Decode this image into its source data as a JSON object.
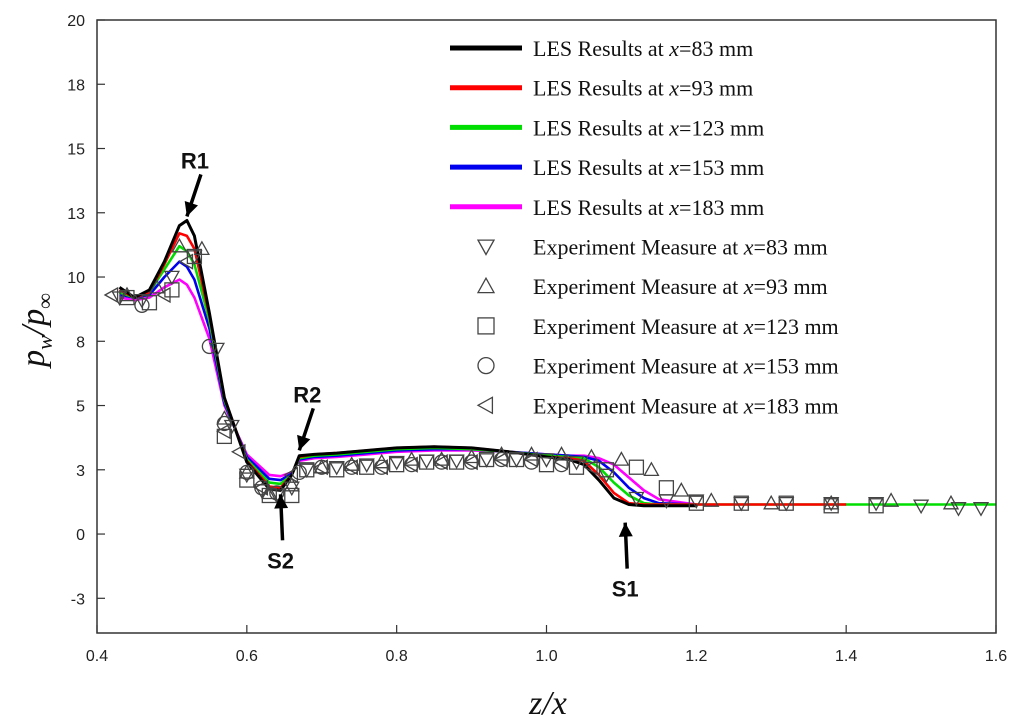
{
  "chart_data": {
    "type": "line",
    "title": "",
    "xlabel": "z/x",
    "ylabel": "pw/p∞",
    "ylabel_main": "p",
    "ylabel_sub": "w",
    "ylabel_sep": "/p",
    "ylabel_sub2": "∞",
    "xlim": [
      0.4,
      1.6
    ],
    "ylim": [
      -3.85,
      20
    ],
    "x_ticks": [
      0.4,
      0.6,
      0.8,
      1.0,
      1.2,
      1.4,
      1.6
    ],
    "x_tick_labels": [
      "0.4",
      "0.6",
      "0.8",
      "1.0",
      "1.2",
      "1.4",
      "1.6"
    ],
    "y_ticks": [
      -2.5,
      0,
      2.5,
      5,
      7.5,
      10,
      12.5,
      15,
      17.5,
      20
    ],
    "y_tick_labels": [
      "-3",
      "0",
      "3",
      "5",
      "8",
      "10",
      "13",
      "15",
      "18",
      "20"
    ],
    "legend_position": "top-right",
    "series": [
      {
        "name": "LES Results at x=83 mm",
        "prefix": "LES Results at ",
        "x_var": "x",
        "suffix": "=83 mm",
        "color": "#000000",
        "x_end": 1.2,
        "x": [
          0.43,
          0.45,
          0.47,
          0.49,
          0.51,
          0.52,
          0.53,
          0.55,
          0.57,
          0.6,
          0.63,
          0.645,
          0.66,
          0.67,
          0.69,
          0.72,
          0.76,
          0.8,
          0.85,
          0.9,
          0.95,
          1.0,
          1.03,
          1.05,
          1.07,
          1.09,
          1.11,
          1.13,
          1.15,
          1.2
        ],
        "y": [
          9.6,
          9.2,
          9.5,
          10.6,
          12.0,
          12.2,
          11.6,
          8.6,
          5.3,
          2.8,
          1.75,
          1.7,
          2.3,
          3.05,
          3.1,
          3.15,
          3.25,
          3.35,
          3.4,
          3.35,
          3.2,
          3.0,
          2.9,
          2.7,
          2.1,
          1.4,
          1.15,
          1.1,
          1.1,
          1.1
        ]
      },
      {
        "name": "LES Results at x=93 mm",
        "prefix": "LES Results at ",
        "x_var": "x",
        "suffix": "=93 mm",
        "color": "#ff0000",
        "x_end": 1.4,
        "x": [
          0.43,
          0.45,
          0.47,
          0.49,
          0.51,
          0.52,
          0.53,
          0.55,
          0.57,
          0.6,
          0.63,
          0.645,
          0.66,
          0.67,
          0.69,
          0.72,
          0.76,
          0.8,
          0.85,
          0.9,
          0.95,
          1.0,
          1.03,
          1.05,
          1.07,
          1.09,
          1.11,
          1.13,
          1.15,
          1.4
        ],
        "y": [
          9.5,
          9.2,
          9.4,
          10.5,
          11.7,
          11.6,
          11.1,
          8.5,
          5.3,
          2.85,
          1.85,
          1.8,
          2.3,
          3.0,
          3.1,
          3.15,
          3.25,
          3.35,
          3.4,
          3.35,
          3.2,
          3.0,
          2.95,
          2.85,
          2.3,
          1.6,
          1.2,
          1.15,
          1.15,
          1.15
        ]
      },
      {
        "name": "LES Results at x=123 mm",
        "prefix": "LES Results at ",
        "x_var": "x",
        "suffix": "=123 mm",
        "color": "#00dd00",
        "x_end": 1.6,
        "x": [
          0.43,
          0.45,
          0.47,
          0.49,
          0.51,
          0.52,
          0.53,
          0.55,
          0.57,
          0.6,
          0.63,
          0.645,
          0.66,
          0.67,
          0.69,
          0.72,
          0.76,
          0.8,
          0.85,
          0.9,
          0.95,
          1.0,
          1.03,
          1.05,
          1.07,
          1.09,
          1.11,
          1.13,
          1.15,
          1.6
        ],
        "y": [
          9.4,
          9.2,
          9.4,
          10.3,
          11.2,
          11.0,
          10.5,
          8.3,
          5.2,
          2.9,
          2.0,
          1.95,
          2.3,
          2.95,
          3.05,
          3.1,
          3.2,
          3.3,
          3.35,
          3.3,
          3.2,
          3.05,
          3.0,
          2.95,
          2.6,
          2.0,
          1.5,
          1.2,
          1.15,
          1.15
        ]
      },
      {
        "name": "LES Results at x=153 mm",
        "prefix": "LES Results at ",
        "x_var": "x",
        "suffix": "=153 mm",
        "color": "#0000ee",
        "x_end": 1.2,
        "x": [
          0.43,
          0.45,
          0.47,
          0.49,
          0.51,
          0.52,
          0.53,
          0.55,
          0.57,
          0.6,
          0.63,
          0.645,
          0.66,
          0.67,
          0.69,
          0.72,
          0.76,
          0.8,
          0.85,
          0.9,
          0.95,
          1.0,
          1.03,
          1.05,
          1.07,
          1.09,
          1.11,
          1.13,
          1.15,
          1.2
        ],
        "y": [
          9.3,
          9.2,
          9.3,
          10.0,
          10.6,
          10.4,
          9.9,
          8.0,
          5.1,
          3.0,
          2.15,
          2.1,
          2.35,
          2.9,
          3.0,
          3.05,
          3.15,
          3.25,
          3.3,
          3.3,
          3.2,
          3.1,
          3.05,
          3.0,
          2.85,
          2.4,
          1.8,
          1.4,
          1.2,
          1.15
        ]
      },
      {
        "name": "LES Results at x=183 mm",
        "prefix": "LES Results at ",
        "x_var": "x",
        "suffix": "=183 mm",
        "color": "#ff00ff",
        "x_end": 1.2,
        "x": [
          0.43,
          0.45,
          0.47,
          0.49,
          0.51,
          0.52,
          0.53,
          0.55,
          0.57,
          0.6,
          0.63,
          0.645,
          0.66,
          0.67,
          0.69,
          0.72,
          0.76,
          0.8,
          0.85,
          0.9,
          0.95,
          1.0,
          1.03,
          1.05,
          1.07,
          1.09,
          1.11,
          1.13,
          1.15,
          1.2
        ],
        "y": [
          9.2,
          9.1,
          9.2,
          9.6,
          9.9,
          9.7,
          9.2,
          7.6,
          5.0,
          3.1,
          2.3,
          2.25,
          2.4,
          2.85,
          2.95,
          3.0,
          3.1,
          3.2,
          3.25,
          3.25,
          3.2,
          3.1,
          3.05,
          3.05,
          2.95,
          2.7,
          2.2,
          1.7,
          1.35,
          1.15
        ]
      }
    ],
    "markers": [
      {
        "name": "Experiment Measure at x=83 mm",
        "prefix": "Experiment Measure at ",
        "x_var": "x",
        "suffix": "=83 mm",
        "symbol": "triangle-down",
        "x": [
          0.43,
          0.46,
          0.5,
          0.53,
          0.56,
          0.58,
          0.6,
          0.62,
          0.64,
          0.66,
          0.68,
          0.72,
          0.76,
          0.8,
          0.84,
          0.88,
          0.92,
          0.96,
          1.0,
          1.04,
          1.08,
          1.12,
          1.16,
          1.2,
          1.26,
          1.32,
          1.38,
          1.44,
          1.5,
          1.55,
          1.58
        ],
        "y": [
          9.2,
          9.1,
          10.0,
          10.8,
          7.2,
          4.2,
          2.3,
          1.7,
          1.5,
          1.8,
          2.5,
          2.6,
          2.7,
          2.8,
          2.85,
          2.85,
          2.9,
          2.9,
          2.9,
          2.8,
          2.3,
          1.4,
          1.3,
          1.3,
          1.2,
          1.2,
          1.2,
          1.2,
          1.1,
          1.0,
          1.0
        ]
      },
      {
        "name": "Experiment Measure at x=93 mm",
        "prefix": "Experiment Measure at ",
        "x_var": "x",
        "suffix": "=93 mm",
        "symbol": "triangle-up",
        "x": [
          0.44,
          0.48,
          0.51,
          0.54,
          0.57,
          0.6,
          0.63,
          0.66,
          0.7,
          0.74,
          0.78,
          0.82,
          0.86,
          0.9,
          0.94,
          0.98,
          1.02,
          1.06,
          1.1,
          1.14,
          1.18,
          1.22,
          1.3,
          1.38,
          1.46,
          1.54
        ],
        "y": [
          9.3,
          9.6,
          11.2,
          11.1,
          4.5,
          2.4,
          1.6,
          1.9,
          2.6,
          2.7,
          2.8,
          2.9,
          2.9,
          3.0,
          3.1,
          3.1,
          3.1,
          3.0,
          2.9,
          2.5,
          1.7,
          1.3,
          1.2,
          1.2,
          1.3,
          1.2
        ]
      },
      {
        "name": "Experiment Measure at x=123 mm",
        "prefix": "Experiment Measure at ",
        "x_var": "x",
        "suffix": "=123 mm",
        "symbol": "square",
        "x": [
          0.44,
          0.47,
          0.5,
          0.53,
          0.57,
          0.6,
          0.63,
          0.66,
          0.68,
          0.72,
          0.76,
          0.8,
          0.84,
          0.88,
          0.92,
          0.96,
          1.0,
          1.04,
          1.08,
          1.12,
          1.16,
          1.2,
          1.26,
          1.32,
          1.38,
          1.44
        ],
        "y": [
          9.2,
          9.0,
          9.5,
          10.8,
          3.8,
          2.1,
          1.5,
          1.5,
          2.5,
          2.5,
          2.6,
          2.7,
          2.8,
          2.8,
          2.9,
          2.9,
          2.7,
          2.6,
          2.5,
          2.6,
          1.8,
          1.2,
          1.2,
          1.2,
          1.1,
          1.1
        ]
      },
      {
        "name": "Experiment Measure at x=153 mm",
        "prefix": "Experiment Measure at ",
        "x_var": "x",
        "suffix": "=153 mm",
        "symbol": "circle",
        "x": [
          0.46,
          0.55,
          0.57,
          0.6,
          0.62,
          0.64,
          0.67,
          0.7,
          0.74,
          0.78,
          0.82,
          0.86,
          0.9,
          0.94,
          0.98,
          1.02
        ],
        "y": [
          8.9,
          7.3,
          4.3,
          2.4,
          1.8,
          1.6,
          2.4,
          2.6,
          2.6,
          2.6,
          2.7,
          2.8,
          2.8,
          2.9,
          2.8,
          2.7
        ]
      },
      {
        "name": "Experiment Measure at x=183 mm",
        "prefix": "Experiment Measure at ",
        "x_var": "x",
        "suffix": "=183 mm",
        "symbol": "triangle-left",
        "x": [
          0.42,
          0.49,
          0.52,
          0.57,
          0.59,
          0.62,
          0.66,
          0.7,
          0.74,
          0.78,
          0.82,
          0.86,
          0.9,
          0.94,
          0.98,
          1.02,
          1.06
        ],
        "y": [
          9.3,
          9.3,
          10.6,
          4.0,
          3.2,
          1.8,
          2.3,
          2.6,
          2.6,
          2.6,
          2.7,
          2.8,
          2.8,
          2.9,
          2.9,
          2.8,
          2.6
        ]
      }
    ],
    "annotations": [
      {
        "text": "R1",
        "x": 0.52,
        "y": 12.2,
        "arrow_from": "above"
      },
      {
        "text": "R2",
        "x": 0.67,
        "y": 3.1,
        "arrow_from": "above"
      },
      {
        "text": "S2",
        "x": 0.645,
        "y": 1.7,
        "arrow_from": "below"
      },
      {
        "text": "S1",
        "x": 1.105,
        "y": 0.6,
        "arrow_from": "below"
      }
    ]
  }
}
